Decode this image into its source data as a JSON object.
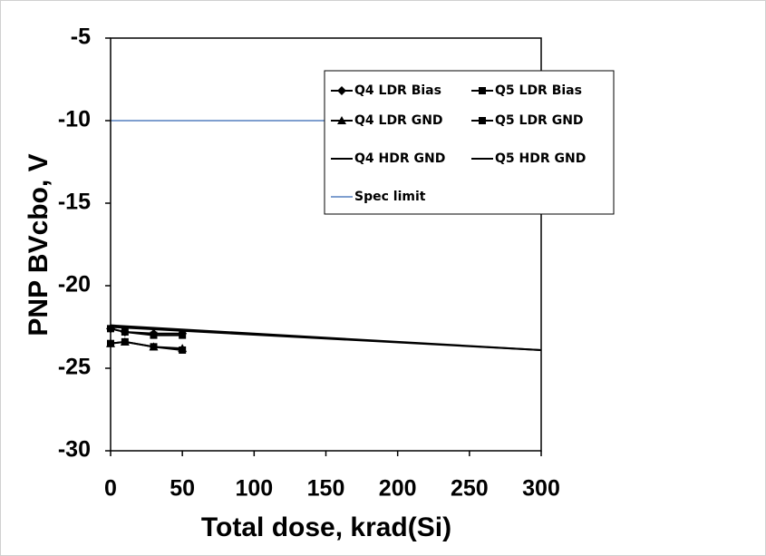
{
  "chart_data": {
    "type": "line",
    "x_label": "Total dose, krad(Si)",
    "y_label": "PNP BVcbo, V",
    "xlim": [
      0,
      300
    ],
    "xticks": [
      0,
      50,
      100,
      150,
      200,
      250,
      300
    ],
    "ylim": [
      -30,
      -5
    ],
    "yticks": [
      -30,
      -25,
      -20,
      -15,
      -10,
      -5
    ],
    "series": [
      {
        "name": "Q4 LDR Bias",
        "color": "#000000",
        "marker": "diamond",
        "x": [
          0,
          10,
          30,
          50
        ],
        "values": [
          -22.6,
          -22.8,
          -22.9,
          -22.9
        ]
      },
      {
        "name": "Q5 LDR Bias",
        "color": "#000000",
        "marker": "square",
        "x": [
          0,
          10,
          30,
          50
        ],
        "values": [
          -22.6,
          -22.8,
          -23.0,
          -23.0
        ]
      },
      {
        "name": "Q4 LDR GND",
        "color": "#000000",
        "marker": "triangle",
        "x": [
          0,
          10,
          30,
          50
        ],
        "values": [
          -23.5,
          -23.4,
          -23.7,
          -23.8
        ]
      },
      {
        "name": "Q5 LDR GND",
        "color": "#000000",
        "marker": "square",
        "x": [
          0,
          10,
          30,
          50
        ],
        "values": [
          -23.5,
          -23.4,
          -23.7,
          -23.9
        ]
      },
      {
        "name": "Q4 HDR GND",
        "color": "#000000",
        "marker": "none",
        "x": [
          0,
          300
        ],
        "values": [
          -22.4,
          -23.9
        ]
      },
      {
        "name": "Q5 HDR GND",
        "color": "#000000",
        "marker": "none",
        "x": [
          0,
          300
        ],
        "values": [
          -22.5,
          -23.9
        ]
      },
      {
        "name": "Spec limit",
        "color": "#7f9fcf",
        "marker": "none",
        "x": [
          0,
          300
        ],
        "values": [
          -10,
          -10
        ]
      }
    ]
  }
}
